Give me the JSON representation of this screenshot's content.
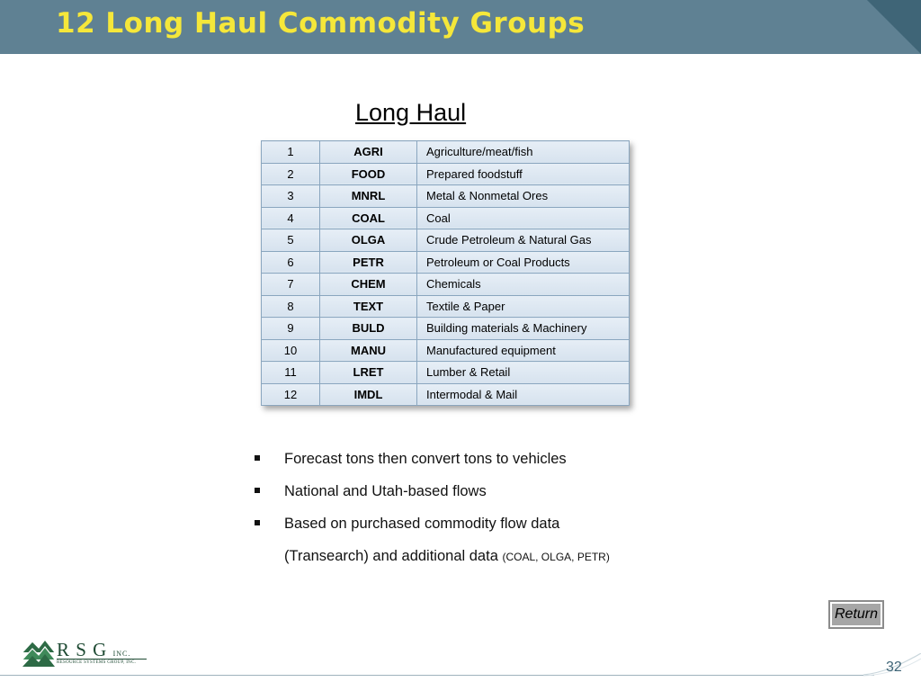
{
  "slide": {
    "title": "12 Long Haul Commodity Groups",
    "page_number": "32",
    "colors": {
      "title_bar": "#5f8193",
      "title_text": "#f5e73a"
    }
  },
  "table": {
    "heading": "Long Haul",
    "rows": [
      {
        "num": "1",
        "code": "AGRI",
        "desc": "Agriculture/meat/fish"
      },
      {
        "num": "2",
        "code": "FOOD",
        "desc": "Prepared foodstuff"
      },
      {
        "num": "3",
        "code": "MNRL",
        "desc": "Metal & Nonmetal Ores"
      },
      {
        "num": "4",
        "code": "COAL",
        "desc": "Coal"
      },
      {
        "num": "5",
        "code": "OLGA",
        "desc": "Crude Petroleum & Natural Gas"
      },
      {
        "num": "6",
        "code": "PETR",
        "desc": "Petroleum or Coal Products"
      },
      {
        "num": "7",
        "code": "CHEM",
        "desc": "Chemicals"
      },
      {
        "num": "8",
        "code": "TEXT",
        "desc": "Textile & Paper"
      },
      {
        "num": "9",
        "code": "BULD",
        "desc": "Building materials & Machinery"
      },
      {
        "num": "10",
        "code": "MANU",
        "desc": "Manufactured equipment"
      },
      {
        "num": "11",
        "code": "LRET",
        "desc": "Lumber & Retail"
      },
      {
        "num": "12",
        "code": "IMDL",
        "desc": "Intermodal & Mail"
      }
    ]
  },
  "bullets": {
    "item1": "Forecast tons then convert tons to vehicles",
    "item2": "National and Utah-based flows",
    "item3": "Based on purchased commodity flow data",
    "item3_cont": "(Transearch) and additional data",
    "item3_small": "(COAL, OLGA, PETR)"
  },
  "return_button": {
    "label": "Return"
  },
  "logo": {
    "letters": "R S G",
    "suffix": "INC.",
    "tagline": "RESOURCE SYSTEMS GROUP, INC."
  }
}
